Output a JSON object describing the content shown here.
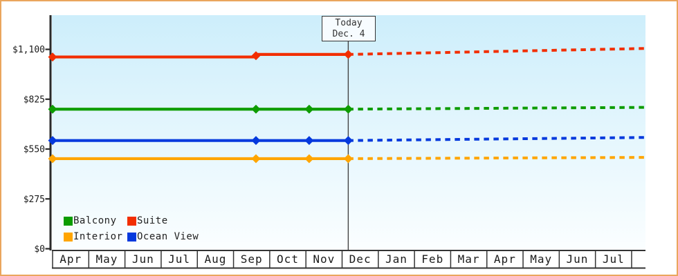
{
  "frame": {
    "border_color": "#eaa65d"
  },
  "legend": {
    "items": [
      {
        "label": "Balcony",
        "color": "#0d9c00"
      },
      {
        "label": "Suite",
        "color": "#f22e00"
      },
      {
        "label": "Interior",
        "color": "#ffa500"
      },
      {
        "label": "Ocean View",
        "color": "#0439dd"
      }
    ]
  },
  "chart_data": {
    "type": "line",
    "x_axis": {
      "unit": "month",
      "categories": [
        "Apr",
        "May",
        "Jun",
        "Jul",
        "Aug",
        "Sep",
        "Oct",
        "Nov",
        "Dec",
        "Jan",
        "Feb",
        "Mar",
        "Apr",
        "May",
        "Jun",
        "Jul"
      ],
      "partial_trailing_cell": true
    },
    "y_axis": {
      "ticks": [
        {
          "label": "$1,100",
          "value": 1100
        },
        {
          "label": "$825",
          "value": 825
        },
        {
          "label": "$550",
          "value": 550
        },
        {
          "label": "$275",
          "value": 275
        },
        {
          "label": "$0",
          "value": 0
        }
      ],
      "value_at_plot_top": 1286
    },
    "today": {
      "m": 8.17,
      "label": "Today",
      "date": "Dec. 4"
    },
    "series": [
      {
        "name": "Suite",
        "color": "#f22e00",
        "solid": [
          {
            "m": 0,
            "value": 1058
          },
          {
            "m": 5.62,
            "value": 1058
          },
          {
            "m": 5.62,
            "value": 1072
          },
          {
            "m": 8.17,
            "value": 1072
          }
        ],
        "markers": [
          {
            "m": 0,
            "value": 1058
          },
          {
            "m": 5.62,
            "value": 1065
          },
          {
            "m": 8.17,
            "value": 1072
          }
        ],
        "dashed": [
          {
            "m": 8.17,
            "value": 1072
          },
          {
            "m": 16.39,
            "value": 1105
          }
        ]
      },
      {
        "name": "Balcony",
        "color": "#0d9c00",
        "solid": [
          {
            "m": 0,
            "value": 770
          },
          {
            "m": 8.17,
            "value": 770
          }
        ],
        "markers": [
          {
            "m": 0,
            "value": 770
          },
          {
            "m": 5.62,
            "value": 770
          },
          {
            "m": 7.09,
            "value": 770
          },
          {
            "m": 8.17,
            "value": 770
          }
        ],
        "dashed": [
          {
            "m": 8.17,
            "value": 770
          },
          {
            "m": 16.39,
            "value": 780
          }
        ]
      },
      {
        "name": "Ocean View",
        "color": "#0439dd",
        "solid": [
          {
            "m": 0,
            "value": 597
          },
          {
            "m": 8.17,
            "value": 597
          }
        ],
        "markers": [
          {
            "m": 0,
            "value": 597
          },
          {
            "m": 5.62,
            "value": 597
          },
          {
            "m": 7.09,
            "value": 597
          },
          {
            "m": 8.17,
            "value": 597
          }
        ],
        "dashed": [
          {
            "m": 8.17,
            "value": 597
          },
          {
            "m": 16.39,
            "value": 614
          }
        ]
      },
      {
        "name": "Interior",
        "color": "#ffa500",
        "solid": [
          {
            "m": 0,
            "value": 497
          },
          {
            "m": 8.17,
            "value": 497
          }
        ],
        "markers": [
          {
            "m": 0,
            "value": 497
          },
          {
            "m": 5.62,
            "value": 497
          },
          {
            "m": 7.09,
            "value": 497
          },
          {
            "m": 8.17,
            "value": 497
          }
        ],
        "dashed": [
          {
            "m": 8.17,
            "value": 497
          },
          {
            "m": 16.39,
            "value": 504
          }
        ]
      }
    ]
  }
}
